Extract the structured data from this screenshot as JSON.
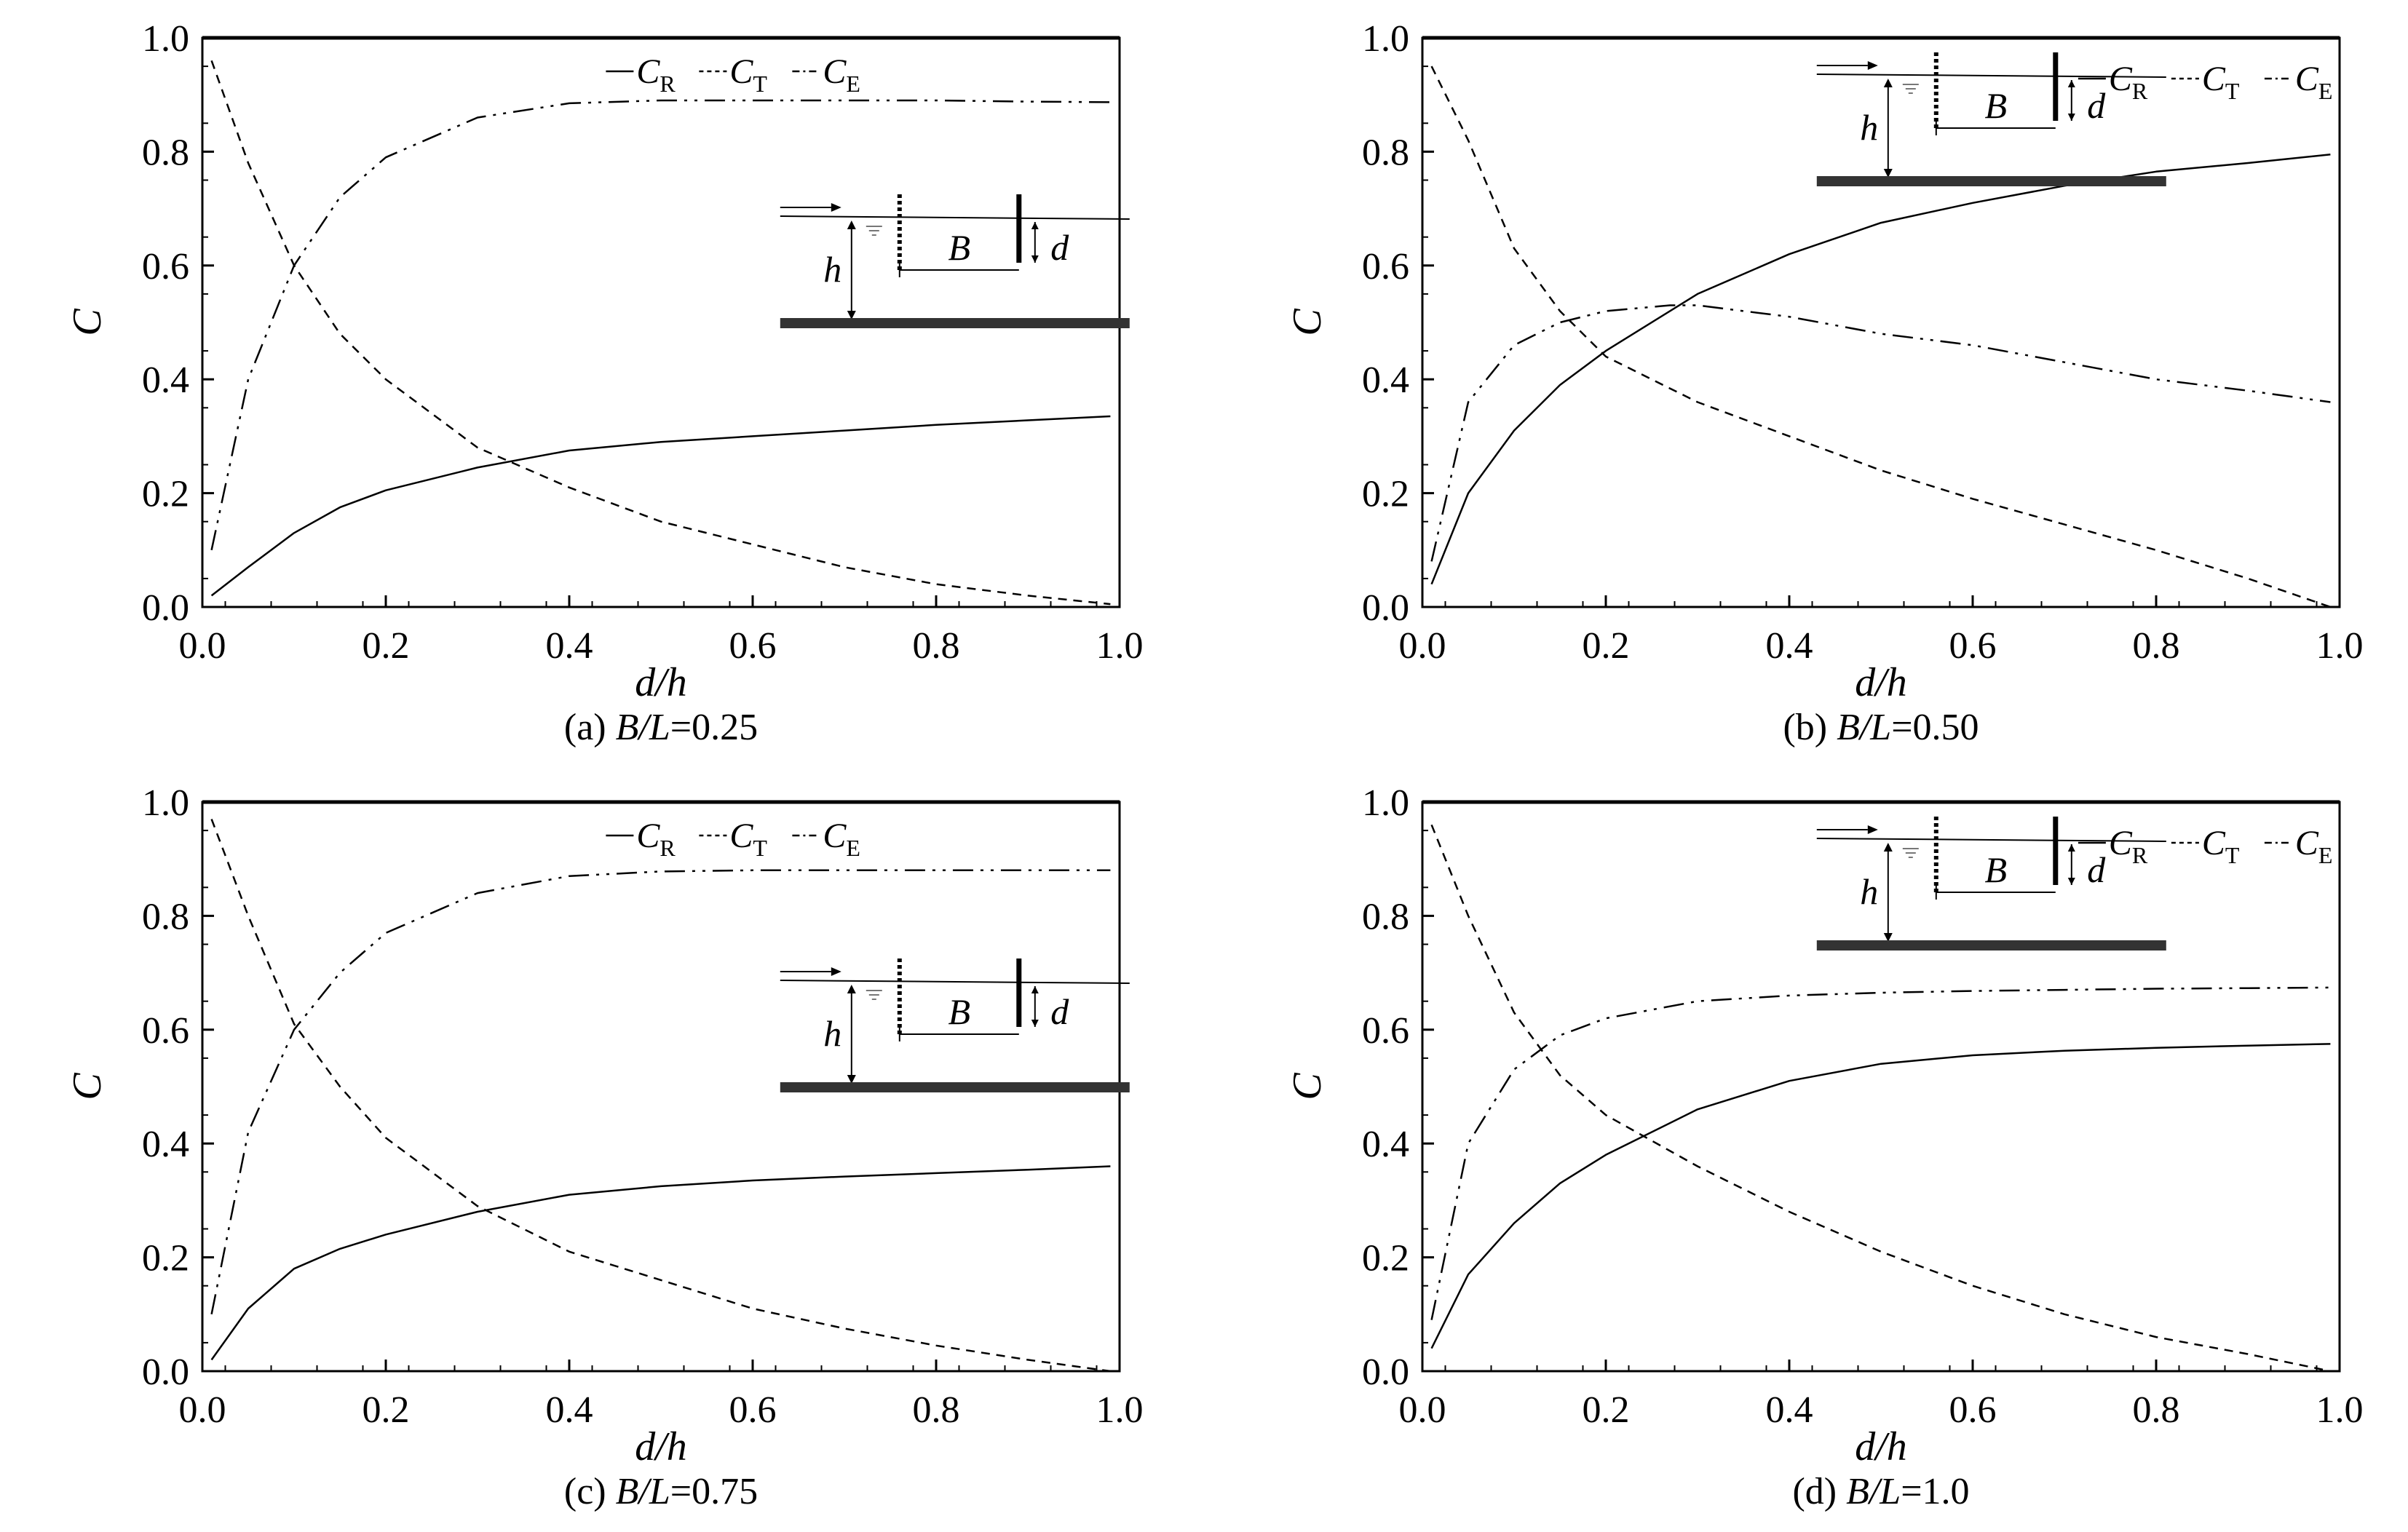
{
  "chart_data": [
    {
      "type": "line",
      "caption_prefix": "(a) ",
      "caption_var": "B/L",
      "caption_value": "=0.25",
      "xlabel": "d/h",
      "ylabel": "C",
      "xlim": [
        0,
        1
      ],
      "ylim": [
        0,
        1
      ],
      "xticks": [
        "0.0",
        "0.2",
        "0.4",
        "0.6",
        "0.8",
        "1.0"
      ],
      "yticks": [
        "0.0",
        "0.2",
        "0.4",
        "0.6",
        "0.8",
        "1.0"
      ],
      "grid": false,
      "legend": [
        "C_R",
        "C_T",
        "C_E"
      ],
      "legend_placement": "top-center",
      "inset_placement": "right-middle",
      "inset_labels": {
        "h": "h",
        "B": "B",
        "d": "d"
      },
      "series": [
        {
          "name": "C_R",
          "style": "solid",
          "x": [
            0.01,
            0.05,
            0.1,
            0.15,
            0.2,
            0.3,
            0.4,
            0.5,
            0.6,
            0.7,
            0.8,
            0.9,
            0.99
          ],
          "y": [
            0.02,
            0.07,
            0.13,
            0.175,
            0.205,
            0.245,
            0.275,
            0.29,
            0.3,
            0.31,
            0.32,
            0.328,
            0.335
          ]
        },
        {
          "name": "C_T",
          "style": "dashed",
          "x": [
            0.01,
            0.05,
            0.1,
            0.15,
            0.2,
            0.3,
            0.4,
            0.5,
            0.6,
            0.7,
            0.8,
            0.9,
            0.99
          ],
          "y": [
            0.96,
            0.78,
            0.6,
            0.48,
            0.4,
            0.28,
            0.21,
            0.15,
            0.11,
            0.07,
            0.04,
            0.02,
            0.005
          ]
        },
        {
          "name": "C_E",
          "style": "dashdot",
          "x": [
            0.01,
            0.05,
            0.1,
            0.15,
            0.2,
            0.3,
            0.4,
            0.5,
            0.6,
            0.7,
            0.8,
            0.9,
            0.99
          ],
          "y": [
            0.1,
            0.4,
            0.6,
            0.72,
            0.79,
            0.86,
            0.885,
            0.89,
            0.89,
            0.89,
            0.89,
            0.888,
            0.887
          ]
        }
      ]
    },
    {
      "type": "line",
      "caption_prefix": "(b) ",
      "caption_var": "B/L",
      "caption_value": "=0.50",
      "xlabel": "d/h",
      "ylabel": "C",
      "xlim": [
        0,
        1
      ],
      "ylim": [
        0,
        1
      ],
      "xticks": [
        "0.0",
        "0.2",
        "0.4",
        "0.6",
        "0.8",
        "1.0"
      ],
      "yticks": [
        "0.0",
        "0.2",
        "0.4",
        "0.6",
        "0.8",
        "1.0"
      ],
      "grid": false,
      "legend": [
        "C_R",
        "C_T",
        "C_E"
      ],
      "legend_placement": "top-right",
      "inset_placement": "top-center",
      "inset_labels": {
        "h": "h",
        "B": "B",
        "d": "d"
      },
      "series": [
        {
          "name": "C_R",
          "style": "solid",
          "x": [
            0.01,
            0.05,
            0.1,
            0.15,
            0.2,
            0.3,
            0.4,
            0.5,
            0.6,
            0.7,
            0.8,
            0.9,
            0.99
          ],
          "y": [
            0.04,
            0.2,
            0.31,
            0.39,
            0.45,
            0.55,
            0.62,
            0.675,
            0.71,
            0.74,
            0.765,
            0.78,
            0.795
          ]
        },
        {
          "name": "C_T",
          "style": "dashed",
          "x": [
            0.01,
            0.05,
            0.1,
            0.15,
            0.2,
            0.3,
            0.4,
            0.5,
            0.6,
            0.7,
            0.8,
            0.9,
            0.99
          ],
          "y": [
            0.95,
            0.82,
            0.63,
            0.52,
            0.44,
            0.36,
            0.3,
            0.24,
            0.19,
            0.145,
            0.1,
            0.05,
            0.0
          ]
        },
        {
          "name": "C_E",
          "style": "dashdot",
          "x": [
            0.01,
            0.05,
            0.1,
            0.15,
            0.2,
            0.27,
            0.3,
            0.4,
            0.5,
            0.6,
            0.7,
            0.8,
            0.9,
            0.99
          ],
          "y": [
            0.08,
            0.36,
            0.46,
            0.5,
            0.52,
            0.53,
            0.53,
            0.51,
            0.48,
            0.46,
            0.43,
            0.4,
            0.38,
            0.36
          ]
        }
      ]
    },
    {
      "type": "line",
      "caption_prefix": "(c) ",
      "caption_var": "B/L",
      "caption_value": "=0.75",
      "xlabel": "d/h",
      "ylabel": "C",
      "xlim": [
        0,
        1
      ],
      "ylim": [
        0,
        1
      ],
      "xticks": [
        "0.0",
        "0.2",
        "0.4",
        "0.6",
        "0.8",
        "1.0"
      ],
      "yticks": [
        "0.0",
        "0.2",
        "0.4",
        "0.6",
        "0.8",
        "1.0"
      ],
      "grid": false,
      "legend": [
        "C_R",
        "C_T",
        "C_E"
      ],
      "legend_placement": "top-center",
      "inset_placement": "right-middle",
      "inset_labels": {
        "h": "h",
        "B": "B",
        "d": "d"
      },
      "series": [
        {
          "name": "C_R",
          "style": "solid",
          "x": [
            0.01,
            0.05,
            0.1,
            0.15,
            0.2,
            0.3,
            0.4,
            0.5,
            0.6,
            0.7,
            0.8,
            0.9,
            0.99
          ],
          "y": [
            0.02,
            0.11,
            0.18,
            0.215,
            0.24,
            0.28,
            0.31,
            0.325,
            0.335,
            0.342,
            0.348,
            0.354,
            0.36
          ]
        },
        {
          "name": "C_T",
          "style": "dashed",
          "x": [
            0.01,
            0.05,
            0.1,
            0.15,
            0.2,
            0.3,
            0.4,
            0.5,
            0.6,
            0.7,
            0.8,
            0.9,
            0.99
          ],
          "y": [
            0.97,
            0.8,
            0.61,
            0.5,
            0.41,
            0.29,
            0.21,
            0.16,
            0.11,
            0.075,
            0.045,
            0.02,
            0.0
          ]
        },
        {
          "name": "C_E",
          "style": "dashdot",
          "x": [
            0.01,
            0.05,
            0.1,
            0.15,
            0.2,
            0.3,
            0.4,
            0.5,
            0.6,
            0.7,
            0.8,
            0.9,
            0.99
          ],
          "y": [
            0.1,
            0.42,
            0.6,
            0.7,
            0.77,
            0.84,
            0.87,
            0.878,
            0.88,
            0.88,
            0.88,
            0.88,
            0.88
          ]
        }
      ]
    },
    {
      "type": "line",
      "caption_prefix": "(d) ",
      "caption_var": "B/L",
      "caption_value": "=1.0",
      "xlabel": "d/h",
      "ylabel": "C",
      "xlim": [
        0,
        1
      ],
      "ylim": [
        0,
        1
      ],
      "xticks": [
        "0.0",
        "0.2",
        "0.4",
        "0.6",
        "0.8",
        "1.0"
      ],
      "yticks": [
        "0.0",
        "0.2",
        "0.4",
        "0.6",
        "0.8",
        "1.0"
      ],
      "grid": false,
      "legend": [
        "C_R",
        "C_T",
        "C_E"
      ],
      "legend_placement": "top-right",
      "inset_placement": "top-center",
      "inset_labels": {
        "h": "h",
        "B": "B",
        "d": "d"
      },
      "series": [
        {
          "name": "C_R",
          "style": "solid",
          "x": [
            0.01,
            0.05,
            0.1,
            0.15,
            0.2,
            0.3,
            0.4,
            0.5,
            0.6,
            0.7,
            0.8,
            0.9,
            0.99
          ],
          "y": [
            0.04,
            0.17,
            0.26,
            0.33,
            0.38,
            0.46,
            0.51,
            0.54,
            0.555,
            0.563,
            0.568,
            0.572,
            0.575
          ]
        },
        {
          "name": "C_T",
          "style": "dashed",
          "x": [
            0.01,
            0.05,
            0.1,
            0.15,
            0.2,
            0.3,
            0.4,
            0.5,
            0.6,
            0.7,
            0.8,
            0.9,
            0.99
          ],
          "y": [
            0.96,
            0.8,
            0.63,
            0.52,
            0.45,
            0.36,
            0.28,
            0.21,
            0.15,
            0.1,
            0.06,
            0.03,
            0.0
          ]
        },
        {
          "name": "C_E",
          "style": "dashdot",
          "x": [
            0.01,
            0.05,
            0.1,
            0.15,
            0.2,
            0.3,
            0.4,
            0.5,
            0.6,
            0.7,
            0.8,
            0.9,
            0.99
          ],
          "y": [
            0.09,
            0.4,
            0.53,
            0.59,
            0.62,
            0.65,
            0.66,
            0.665,
            0.668,
            0.67,
            0.672,
            0.673,
            0.674
          ]
        }
      ]
    }
  ]
}
